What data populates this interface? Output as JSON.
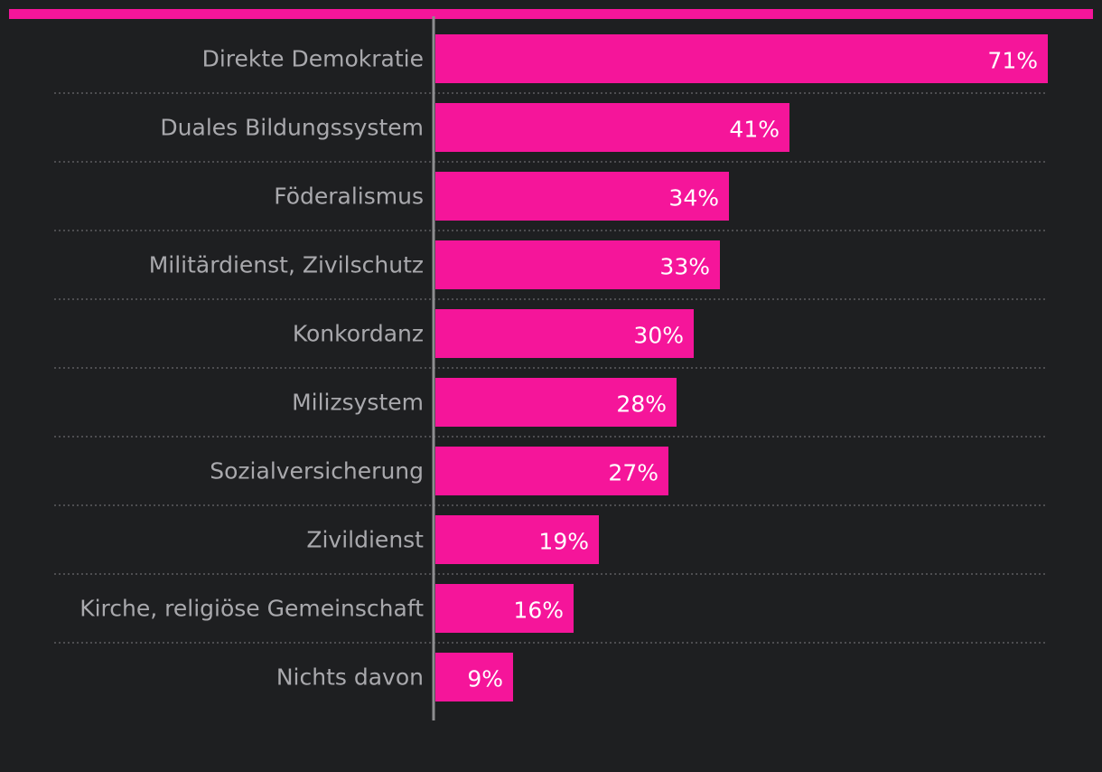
{
  "chart_data": {
    "type": "bar",
    "orientation": "horizontal",
    "categories": [
      "Direkte Demokratie",
      "Duales Bildungssystem",
      "Föderalismus",
      "Militärdienst, Zivilschutz",
      "Konkordanz",
      "Milizsystem",
      "Sozialversicherung",
      "Zivildienst",
      "Kirche, religiöse Gemeinschaft",
      "Nichts davon"
    ],
    "values": [
      71,
      41,
      34,
      33,
      30,
      28,
      27,
      19,
      16,
      9
    ],
    "value_labels": [
      "71%",
      "41%",
      "34%",
      "33%",
      "30%",
      "28%",
      "27%",
      "19%",
      "16%",
      "9%"
    ],
    "unit": "%",
    "xlim": [
      0,
      71
    ],
    "grid": false,
    "legend": "none"
  },
  "colors": {
    "background": "#1e1f21",
    "bar": "#f5159a",
    "accent_bar": "#f5159a",
    "axis": "#8d8d90",
    "separator": "#5d5d60",
    "category_text": "#a9a9ad",
    "value_text": "#ffffff"
  }
}
